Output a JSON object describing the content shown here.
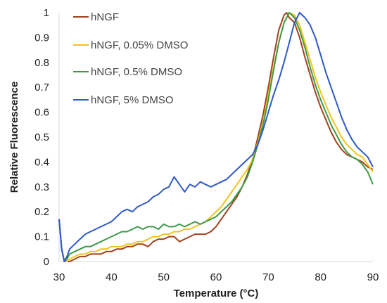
{
  "chart_data": {
    "type": "line",
    "xlabel": "Temperature (°C)",
    "ylabel": "Relative Fluorescence",
    "xlim": [
      30,
      90
    ],
    "ylim": [
      0,
      1
    ],
    "x_ticks": [
      "30",
      "40",
      "50",
      "60",
      "70",
      "80",
      "90"
    ],
    "y_ticks": [
      "0",
      "0.1",
      "0.2",
      "0.3",
      "0.4",
      "0.5",
      "0.6",
      "0.7",
      "0.8",
      "0.9",
      "1"
    ],
    "grid": false,
    "legend_position": "top-left",
    "series": [
      {
        "name": "hNGF",
        "color": "#a0421f",
        "points": [
          [
            30,
            0.17
          ],
          [
            30.5,
            0.05
          ],
          [
            31,
            0.0
          ],
          [
            31.5,
            0.0
          ],
          [
            32,
            0.0
          ],
          [
            33,
            0.01
          ],
          [
            34,
            0.02
          ],
          [
            35,
            0.02
          ],
          [
            36,
            0.03
          ],
          [
            37,
            0.03
          ],
          [
            38,
            0.03
          ],
          [
            39,
            0.04
          ],
          [
            40,
            0.04
          ],
          [
            41,
            0.05
          ],
          [
            42,
            0.05
          ],
          [
            43,
            0.06
          ],
          [
            44,
            0.06
          ],
          [
            45,
            0.07
          ],
          [
            46,
            0.07
          ],
          [
            47,
            0.06
          ],
          [
            48,
            0.08
          ],
          [
            49,
            0.09
          ],
          [
            50,
            0.09
          ],
          [
            51,
            0.1
          ],
          [
            52,
            0.1
          ],
          [
            53,
            0.08
          ],
          [
            54,
            0.09
          ],
          [
            55,
            0.1
          ],
          [
            56,
            0.11
          ],
          [
            57,
            0.11
          ],
          [
            58,
            0.11
          ],
          [
            59,
            0.12
          ],
          [
            60,
            0.14
          ],
          [
            61,
            0.17
          ],
          [
            62,
            0.2
          ],
          [
            63,
            0.23
          ],
          [
            64,
            0.26
          ],
          [
            65,
            0.3
          ],
          [
            66,
            0.35
          ],
          [
            67,
            0.41
          ],
          [
            68,
            0.5
          ],
          [
            69,
            0.59
          ],
          [
            70,
            0.7
          ],
          [
            71,
            0.82
          ],
          [
            72,
            0.93
          ],
          [
            73,
            0.99
          ],
          [
            73.5,
            1.0
          ],
          [
            74,
            0.98
          ],
          [
            75,
            0.96
          ],
          [
            76,
            0.9
          ],
          [
            77,
            0.82
          ],
          [
            78,
            0.75
          ],
          [
            79,
            0.68
          ],
          [
            80,
            0.62
          ],
          [
            81,
            0.57
          ],
          [
            82,
            0.52
          ],
          [
            83,
            0.48
          ],
          [
            84,
            0.45
          ],
          [
            85,
            0.43
          ],
          [
            86,
            0.42
          ],
          [
            87,
            0.41
          ],
          [
            88,
            0.4
          ],
          [
            89,
            0.38
          ],
          [
            90,
            0.37
          ]
        ]
      },
      {
        "name": "hNGF,  0.05% DMSO",
        "color": "#f0c419",
        "points": [
          [
            30,
            0.17
          ],
          [
            30.5,
            0.05
          ],
          [
            31,
            0.0
          ],
          [
            31.5,
            0.0
          ],
          [
            32,
            0.01
          ],
          [
            33,
            0.02
          ],
          [
            34,
            0.03
          ],
          [
            35,
            0.03
          ],
          [
            36,
            0.04
          ],
          [
            37,
            0.04
          ],
          [
            38,
            0.05
          ],
          [
            39,
            0.05
          ],
          [
            40,
            0.06
          ],
          [
            41,
            0.06
          ],
          [
            42,
            0.06
          ],
          [
            43,
            0.07
          ],
          [
            44,
            0.07
          ],
          [
            45,
            0.08
          ],
          [
            46,
            0.08
          ],
          [
            47,
            0.09
          ],
          [
            48,
            0.1
          ],
          [
            49,
            0.1
          ],
          [
            50,
            0.11
          ],
          [
            51,
            0.11
          ],
          [
            52,
            0.12
          ],
          [
            53,
            0.12
          ],
          [
            54,
            0.13
          ],
          [
            55,
            0.13
          ],
          [
            56,
            0.14
          ],
          [
            57,
            0.15
          ],
          [
            58,
            0.16
          ],
          [
            59,
            0.18
          ],
          [
            60,
            0.2
          ],
          [
            61,
            0.22
          ],
          [
            62,
            0.25
          ],
          [
            63,
            0.28
          ],
          [
            64,
            0.31
          ],
          [
            65,
            0.34
          ],
          [
            66,
            0.37
          ],
          [
            67,
            0.41
          ],
          [
            68,
            0.48
          ],
          [
            69,
            0.56
          ],
          [
            70,
            0.67
          ],
          [
            71,
            0.78
          ],
          [
            72,
            0.88
          ],
          [
            73,
            0.96
          ],
          [
            74,
            1.0
          ],
          [
            75,
            0.99
          ],
          [
            76,
            0.95
          ],
          [
            77,
            0.88
          ],
          [
            78,
            0.81
          ],
          [
            79,
            0.74
          ],
          [
            80,
            0.68
          ],
          [
            81,
            0.63
          ],
          [
            82,
            0.58
          ],
          [
            83,
            0.54
          ],
          [
            84,
            0.5
          ],
          [
            85,
            0.47
          ],
          [
            86,
            0.45
          ],
          [
            87,
            0.43
          ],
          [
            88,
            0.42
          ],
          [
            89,
            0.39
          ],
          [
            90,
            0.36
          ]
        ]
      },
      {
        "name": "hNGF,  0.5% DMSO",
        "color": "#3c9a48",
        "points": [
          [
            30,
            0.17
          ],
          [
            30.5,
            0.05
          ],
          [
            31,
            0.0
          ],
          [
            31.5,
            0.01
          ],
          [
            32,
            0.03
          ],
          [
            33,
            0.04
          ],
          [
            34,
            0.05
          ],
          [
            35,
            0.06
          ],
          [
            36,
            0.06
          ],
          [
            37,
            0.07
          ],
          [
            38,
            0.08
          ],
          [
            39,
            0.09
          ],
          [
            40,
            0.1
          ],
          [
            41,
            0.11
          ],
          [
            42,
            0.12
          ],
          [
            43,
            0.12
          ],
          [
            44,
            0.13
          ],
          [
            45,
            0.14
          ],
          [
            46,
            0.13
          ],
          [
            47,
            0.14
          ],
          [
            48,
            0.14
          ],
          [
            49,
            0.13
          ],
          [
            50,
            0.15
          ],
          [
            51,
            0.14
          ],
          [
            52,
            0.14
          ],
          [
            53,
            0.15
          ],
          [
            54,
            0.14
          ],
          [
            55,
            0.15
          ],
          [
            56,
            0.16
          ],
          [
            57,
            0.15
          ],
          [
            58,
            0.16
          ],
          [
            59,
            0.17
          ],
          [
            60,
            0.18
          ],
          [
            61,
            0.2
          ],
          [
            62,
            0.22
          ],
          [
            63,
            0.24
          ],
          [
            64,
            0.27
          ],
          [
            65,
            0.3
          ],
          [
            66,
            0.34
          ],
          [
            67,
            0.4
          ],
          [
            68,
            0.47
          ],
          [
            69,
            0.55
          ],
          [
            70,
            0.65
          ],
          [
            71,
            0.77
          ],
          [
            72,
            0.88
          ],
          [
            73,
            0.96
          ],
          [
            74,
            1.0
          ],
          [
            75,
            0.98
          ],
          [
            76,
            0.93
          ],
          [
            77,
            0.86
          ],
          [
            78,
            0.78
          ],
          [
            79,
            0.71
          ],
          [
            80,
            0.65
          ],
          [
            81,
            0.6
          ],
          [
            82,
            0.55
          ],
          [
            83,
            0.51
          ],
          [
            84,
            0.47
          ],
          [
            85,
            0.44
          ],
          [
            86,
            0.42
          ],
          [
            87,
            0.41
          ],
          [
            88,
            0.39
          ],
          [
            89,
            0.36
          ],
          [
            90,
            0.31
          ]
        ]
      },
      {
        "name": "hNGF, 5% DMSO",
        "color": "#2e59c8",
        "points": [
          [
            30,
            0.17
          ],
          [
            30.5,
            0.05
          ],
          [
            31,
            0.0
          ],
          [
            31.5,
            0.02
          ],
          [
            32,
            0.05
          ],
          [
            33,
            0.07
          ],
          [
            34,
            0.09
          ],
          [
            35,
            0.11
          ],
          [
            36,
            0.12
          ],
          [
            37,
            0.13
          ],
          [
            38,
            0.14
          ],
          [
            39,
            0.15
          ],
          [
            40,
            0.16
          ],
          [
            41,
            0.18
          ],
          [
            42,
            0.2
          ],
          [
            43,
            0.21
          ],
          [
            44,
            0.2
          ],
          [
            45,
            0.22
          ],
          [
            46,
            0.23
          ],
          [
            47,
            0.24
          ],
          [
            48,
            0.26
          ],
          [
            49,
            0.27
          ],
          [
            50,
            0.29
          ],
          [
            51,
            0.3
          ],
          [
            52,
            0.34
          ],
          [
            53,
            0.31
          ],
          [
            54,
            0.28
          ],
          [
            55,
            0.31
          ],
          [
            56,
            0.3
          ],
          [
            57,
            0.32
          ],
          [
            58,
            0.31
          ],
          [
            59,
            0.3
          ],
          [
            60,
            0.31
          ],
          [
            61,
            0.32
          ],
          [
            62,
            0.33
          ],
          [
            63,
            0.35
          ],
          [
            64,
            0.37
          ],
          [
            65,
            0.39
          ],
          [
            66,
            0.41
          ],
          [
            67,
            0.43
          ],
          [
            68,
            0.47
          ],
          [
            69,
            0.53
          ],
          [
            70,
            0.6
          ],
          [
            71,
            0.67
          ],
          [
            72,
            0.73
          ],
          [
            73,
            0.8
          ],
          [
            74,
            0.88
          ],
          [
            75,
            0.96
          ],
          [
            76,
            1.0
          ],
          [
            77,
            0.98
          ],
          [
            78,
            0.95
          ],
          [
            79,
            0.9
          ],
          [
            80,
            0.83
          ],
          [
            81,
            0.76
          ],
          [
            82,
            0.7
          ],
          [
            83,
            0.64
          ],
          [
            84,
            0.58
          ],
          [
            85,
            0.53
          ],
          [
            86,
            0.49
          ],
          [
            87,
            0.46
          ],
          [
            88,
            0.44
          ],
          [
            89,
            0.42
          ],
          [
            90,
            0.38
          ]
        ]
      }
    ]
  }
}
